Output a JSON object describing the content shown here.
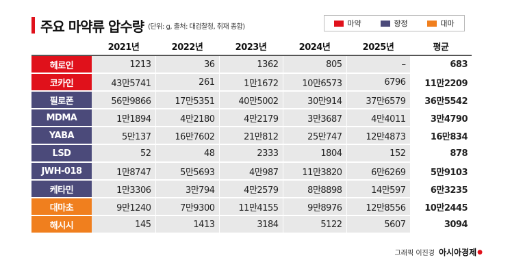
{
  "title": "주요 마약류 압수량",
  "subtitle": "(단위: g, 출처: 대검찰청, 취재 종합)",
  "legend": [
    {
      "label": "마약",
      "color": "#e0111b"
    },
    {
      "label": "향정",
      "color": "#4b4a7a"
    },
    {
      "label": "대마",
      "color": "#f07f1e"
    }
  ],
  "columns": [
    "2021년",
    "2022년",
    "2023년",
    "2024년",
    "2025년",
    "평균"
  ],
  "rows": [
    {
      "name": "헤로인",
      "color": "#e0111b",
      "values": [
        "1213",
        "36",
        "1362",
        "805",
        "–",
        "683"
      ]
    },
    {
      "name": "코카인",
      "color": "#e0111b",
      "values": [
        "43만5741",
        "261",
        "1만1672",
        "10만6573",
        "6796",
        "11만2209"
      ]
    },
    {
      "name": "필로폰",
      "color": "#4b4a7a",
      "values": [
        "56만9866",
        "17만5351",
        "40만5002",
        "30만914",
        "37만6579",
        "36만5542"
      ]
    },
    {
      "name": "MDMA",
      "color": "#4b4a7a",
      "values": [
        "1만1894",
        "4만2180",
        "4만2179",
        "3만3687",
        "4만4011",
        "3만4790"
      ]
    },
    {
      "name": "YABA",
      "color": "#4b4a7a",
      "values": [
        "5만137",
        "16만7602",
        "21만812",
        "25만747",
        "12만4873",
        "16만834"
      ]
    },
    {
      "name": "LSD",
      "color": "#4b4a7a",
      "values": [
        "52",
        "48",
        "2333",
        "1804",
        "152",
        "878"
      ]
    },
    {
      "name": "JWH-018",
      "color": "#4b4a7a",
      "values": [
        "1만8747",
        "5만5693",
        "4만987",
        "11만3820",
        "6만6269",
        "5만9103"
      ]
    },
    {
      "name": "케타민",
      "color": "#4b4a7a",
      "values": [
        "1만3306",
        "3만794",
        "4만2579",
        "8만8898",
        "14만597",
        "6만3235"
      ]
    },
    {
      "name": "대마초",
      "color": "#f07f1e",
      "values": [
        "9만1240",
        "7만9300",
        "11만4155",
        "9만8976",
        "12만8556",
        "10만2445"
      ]
    },
    {
      "name": "해시시",
      "color": "#f07f1e",
      "values": [
        "145",
        "1413",
        "3184",
        "5122",
        "5607",
        "3094"
      ]
    }
  ],
  "credit": {
    "text": "그래픽 이진경",
    "brand": "아시아경제"
  }
}
